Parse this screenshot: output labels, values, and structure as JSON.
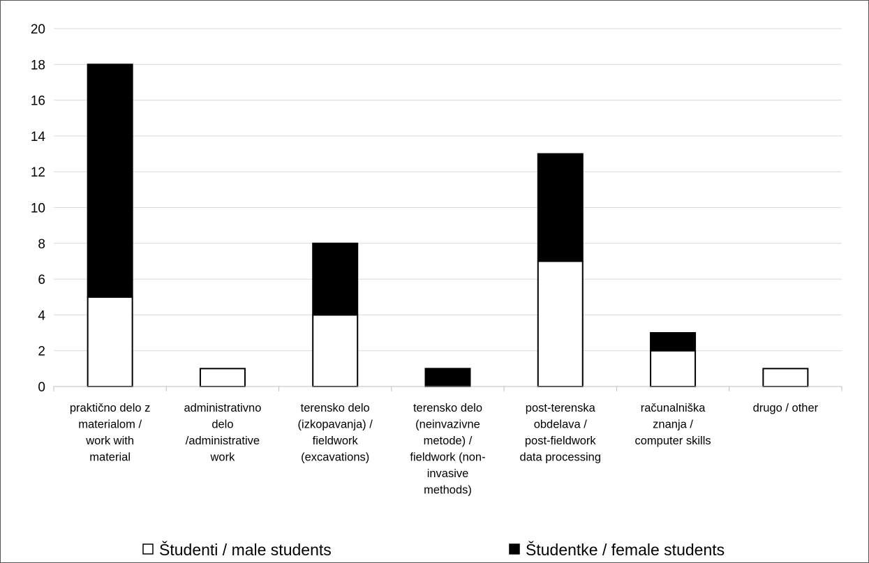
{
  "chart_data": {
    "type": "bar",
    "stacked": true,
    "categories": [
      [
        "praktično delo z",
        "materialom /",
        "work with",
        "material"
      ],
      [
        "administrativno",
        "delo",
        "/administrative",
        "work"
      ],
      [
        "terensko delo",
        "(izkopavanja) /",
        "fieldwork",
        "(excavations)"
      ],
      [
        "terensko delo",
        "(neinvazivne",
        "metode) /",
        "fieldwork (non-",
        "invasive",
        "methods)"
      ],
      [
        "post-terenska",
        "obdelava /",
        "post-fieldwork",
        "data processing"
      ],
      [
        "računalniška",
        "znanja /",
        "computer skills"
      ],
      [
        "drugo / other"
      ]
    ],
    "series": [
      {
        "name": "Študenti / male students",
        "values": [
          5,
          1,
          4,
          0,
          7,
          2,
          1
        ],
        "color": "#ffffff"
      },
      {
        "name": "Študentke / female students",
        "values": [
          13,
          0,
          4,
          1,
          6,
          1,
          0
        ],
        "color": "#000000"
      }
    ],
    "ylim": [
      0,
      20
    ],
    "yticks": [
      0,
      2,
      4,
      6,
      8,
      10,
      12,
      14,
      16,
      18,
      20
    ],
    "grid": true,
    "legend_position": "bottom",
    "title": "",
    "xlabel": "",
    "ylabel": ""
  }
}
